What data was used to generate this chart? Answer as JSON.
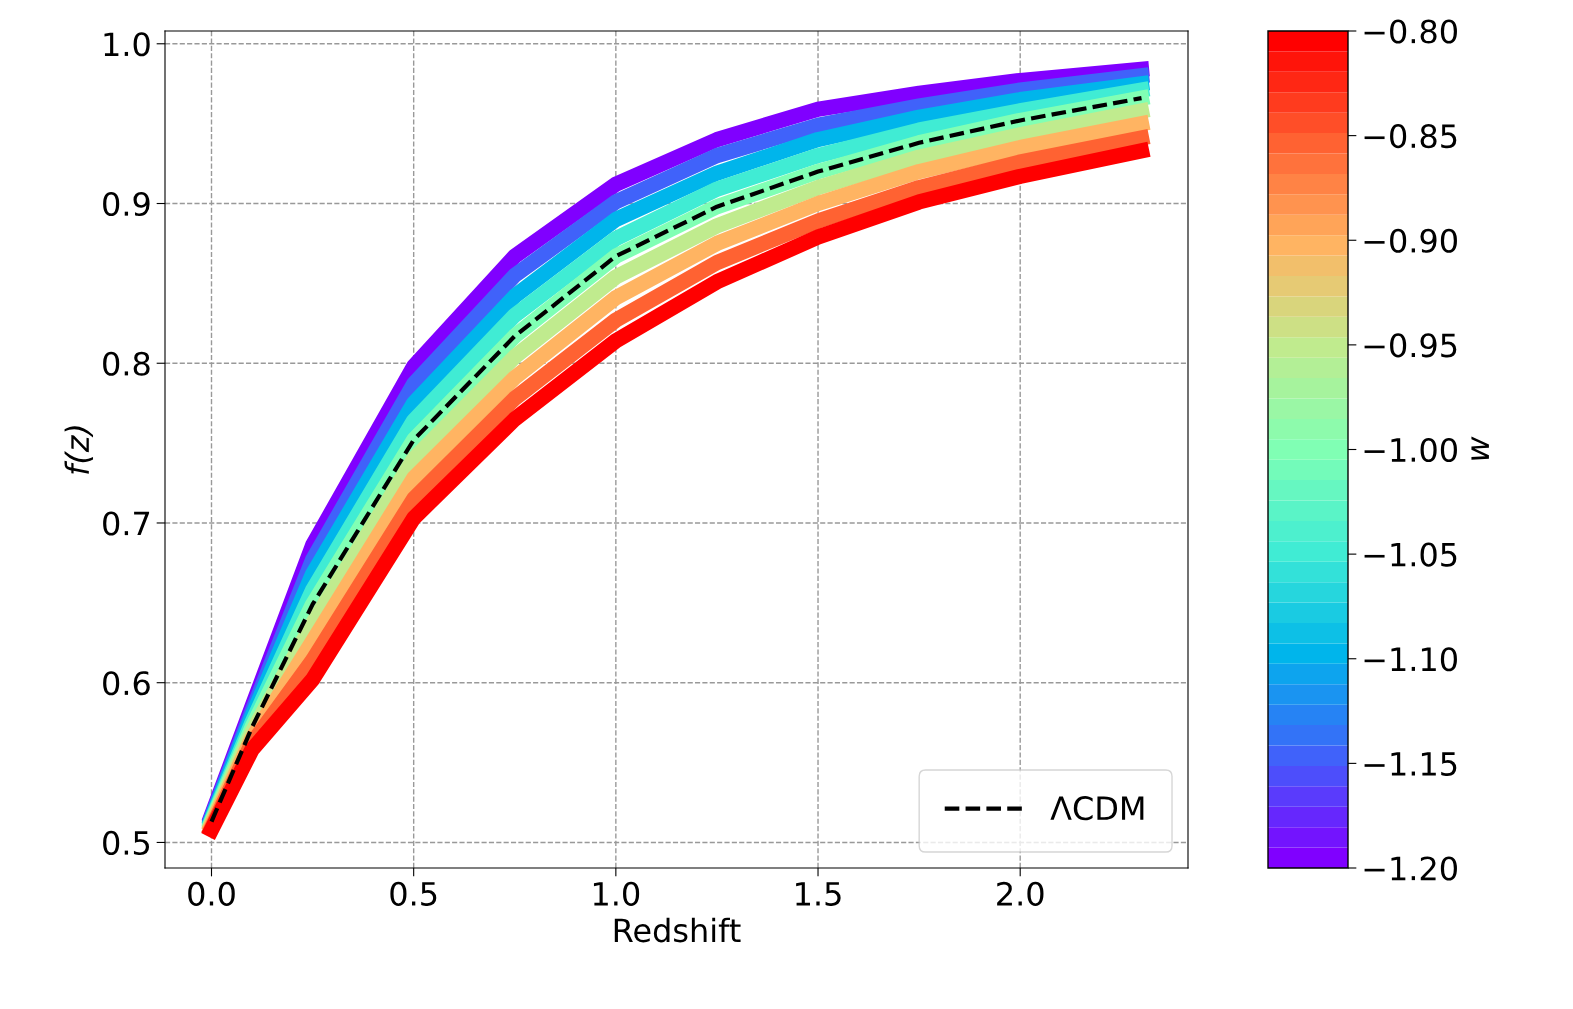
{
  "chart_data": {
    "type": "line",
    "xlabel": "Redshift",
    "ylabel": "f(z)",
    "clabel": "w",
    "x": [
      0,
      0.1,
      0.25,
      0.5,
      0.75,
      1.0,
      1.25,
      1.5,
      1.75,
      2.0,
      2.3
    ],
    "series": [
      {
        "color": "#8000ff",
        "values": [
          0.517,
          0.585,
          0.686,
          0.798,
          0.867,
          0.912,
          0.94,
          0.959,
          0.969,
          0.977,
          0.984
        ]
      },
      {
        "color": "#4062fa",
        "values": [
          0.516,
          0.582,
          0.677,
          0.787,
          0.855,
          0.901,
          0.93,
          0.949,
          0.961,
          0.971,
          0.98
        ]
      },
      {
        "color": "#00b5eb",
        "values": [
          0.515,
          0.579,
          0.668,
          0.775,
          0.842,
          0.89,
          0.919,
          0.94,
          0.954,
          0.965,
          0.975
        ]
      },
      {
        "color": "#40ecd4",
        "values": [
          0.514,
          0.575,
          0.658,
          0.764,
          0.83,
          0.878,
          0.909,
          0.93,
          0.946,
          0.958,
          0.971
        ]
      },
      {
        "color": "#80ffb4",
        "values": [
          0.513,
          0.572,
          0.649,
          0.752,
          0.817,
          0.867,
          0.898,
          0.92,
          0.938,
          0.952,
          0.966
        ]
      },
      {
        "color": "#c0eb8e",
        "values": [
          0.512,
          0.569,
          0.637,
          0.74,
          0.804,
          0.854,
          0.886,
          0.91,
          0.929,
          0.943,
          0.958
        ]
      },
      {
        "color": "#ffb462",
        "values": [
          0.511,
          0.565,
          0.626,
          0.728,
          0.791,
          0.841,
          0.875,
          0.9,
          0.92,
          0.935,
          0.95
        ]
      },
      {
        "color": "#ff6232",
        "values": [
          0.509,
          0.562,
          0.614,
          0.715,
          0.778,
          0.827,
          0.863,
          0.889,
          0.91,
          0.926,
          0.941
        ]
      },
      {
        "color": "#ff0000",
        "values": [
          0.508,
          0.558,
          0.602,
          0.703,
          0.765,
          0.814,
          0.851,
          0.879,
          0.901,
          0.917,
          0.933
        ]
      },
      {
        "name": "ΛCDM",
        "color": "#000000",
        "line_style": "dashed",
        "values": [
          0.513,
          0.572,
          0.649,
          0.752,
          0.817,
          0.867,
          0.898,
          0.92,
          0.938,
          0.952,
          0.966
        ]
      }
    ],
    "xlim": [
      -0.115,
      2.415
    ],
    "ylim": [
      0.484,
      1.008
    ],
    "xticks": [
      {
        "value": 0,
        "label": "0.0"
      },
      0.5,
      {
        "value": 1,
        "label": "1.0"
      },
      1.5,
      {
        "value": 2,
        "label": "2.0"
      }
    ],
    "yticks": [
      0.5,
      0.6,
      0.7,
      0.8,
      0.9,
      {
        "value": 1,
        "label": "1.0"
      }
    ],
    "clim": [
      -1.2,
      -0.8
    ],
    "cticks": [
      {
        "value": -0.8,
        "label": "−0.80"
      },
      {
        "value": -0.85,
        "label": "−0.85"
      },
      {
        "value": -0.9,
        "label": "−0.90"
      },
      {
        "value": -0.95,
        "label": "−0.95"
      },
      {
        "value": -1.0,
        "label": "−1.00"
      },
      {
        "value": -1.05,
        "label": "−1.05"
      },
      {
        "value": -1.1,
        "label": "−1.10"
      },
      {
        "value": -1.15,
        "label": "−1.15"
      },
      {
        "value": -1.2,
        "label": "−1.20"
      }
    ],
    "grid": true,
    "legend": "bottom right",
    "line_style": "solid",
    "marker": "none"
  }
}
